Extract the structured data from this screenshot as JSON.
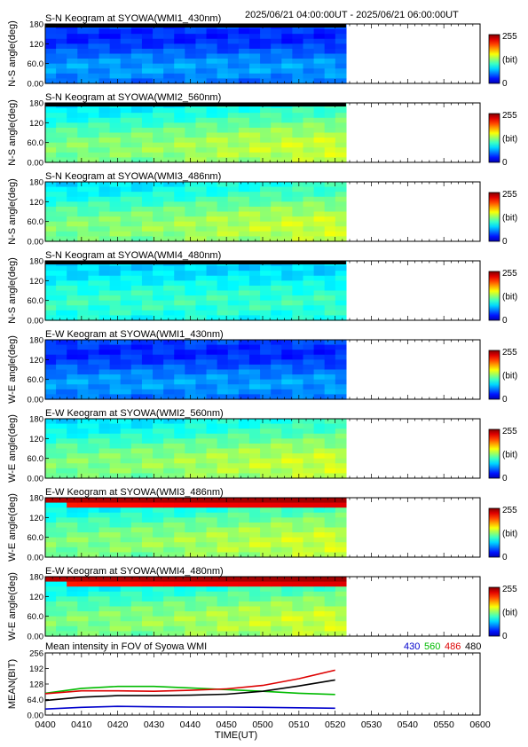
{
  "header": {
    "time_range": "2025/06/21 04:00:00UT - 2025/06/21 06:00:00UT"
  },
  "colorbar": {
    "max_label": "255",
    "unit_label": "(bit)",
    "min_label": "0"
  },
  "chart_data": [
    {
      "type": "heatmap",
      "title": "S-N Keogram at SYOWA(WMI1_430nm)",
      "ylabel": "N-S angle(deg)",
      "yticks": [
        "0.00",
        "60.0",
        "120",
        "180"
      ],
      "ylim": [
        0,
        180
      ],
      "data_end": "05:23UT",
      "colormap": "jet",
      "clim": [
        0,
        255
      ],
      "dominant": "blue",
      "top_edge": "black"
    },
    {
      "type": "heatmap",
      "title": "S-N Keogram at SYOWA(WMI2_560nm)",
      "ylabel": "N-S angle(deg)",
      "yticks": [
        "0.00",
        "60.0",
        "120",
        "180"
      ],
      "ylim": [
        0,
        180
      ],
      "data_end": "05:23UT",
      "colormap": "jet",
      "clim": [
        0,
        255
      ],
      "dominant": "green",
      "top_edge": "black"
    },
    {
      "type": "heatmap",
      "title": "S-N Keogram at SYOWA(WMI3_486nm)",
      "ylabel": "N-S angle(deg)",
      "yticks": [
        "0.00",
        "60.0",
        "120",
        "180"
      ],
      "ylim": [
        0,
        180
      ],
      "data_end": "05:23UT",
      "colormap": "jet",
      "clim": [
        0,
        255
      ],
      "dominant": "green",
      "top_edge": "none"
    },
    {
      "type": "heatmap",
      "title": "S-N Keogram at SYOWA(WMI4_480nm)",
      "ylabel": "N-S angle(deg)",
      "yticks": [
        "0.00",
        "60.0",
        "120",
        "180"
      ],
      "ylim": [
        0,
        180
      ],
      "data_end": "05:23UT",
      "colormap": "jet",
      "clim": [
        0,
        255
      ],
      "dominant": "teal",
      "top_edge": "black"
    },
    {
      "type": "heatmap",
      "title": "E-W Keogram at SYOWA(WMI1_430nm)",
      "ylabel": "W-E angle(deg)",
      "yticks": [
        "0.00",
        "60.0",
        "120",
        "180"
      ],
      "ylim": [
        0,
        180
      ],
      "data_end": "05:23UT",
      "colormap": "jet",
      "clim": [
        0,
        255
      ],
      "dominant": "blue",
      "top_edge": "none"
    },
    {
      "type": "heatmap",
      "title": "E-W Keogram at SYOWA(WMI2_560nm)",
      "ylabel": "W-E angle(deg)",
      "yticks": [
        "0.00",
        "60.0",
        "120",
        "180"
      ],
      "ylim": [
        0,
        180
      ],
      "data_end": "05:23UT",
      "colormap": "jet",
      "clim": [
        0,
        255
      ],
      "dominant": "green",
      "top_edge": "none"
    },
    {
      "type": "heatmap",
      "title": "E-W Keogram at SYOWA(WMI3_486nm)",
      "ylabel": "W-E angle(deg)",
      "yticks": [
        "0.00",
        "60.0",
        "120",
        "180"
      ],
      "ylim": [
        0,
        180
      ],
      "data_end": "05:23UT",
      "colormap": "jet",
      "clim": [
        0,
        255
      ],
      "dominant": "green",
      "top_edge": "red"
    },
    {
      "type": "heatmap",
      "title": "E-W Keogram at SYOWA(WMI4_480nm)",
      "ylabel": "W-E angle(deg)",
      "yticks": [
        "0.00",
        "60.0",
        "120",
        "180"
      ],
      "ylim": [
        0,
        180
      ],
      "data_end": "05:23UT",
      "colormap": "jet",
      "clim": [
        0,
        255
      ],
      "dominant": "green",
      "top_edge": "red"
    },
    {
      "type": "line",
      "title": "Mean intensity in FOV of Syowa WMI",
      "ylabel": "MEAN(BIT)",
      "xlabel": "TIME(UT)",
      "yticks": [
        "0.00",
        "64.0",
        "128",
        "192",
        "256"
      ],
      "ylim": [
        0,
        256
      ],
      "x_minutes_since_0400": [
        0,
        10,
        20,
        30,
        40,
        50,
        60,
        70,
        80
      ],
      "series": [
        {
          "name": "430",
          "color": "#0000cc",
          "values": [
            25,
            32,
            36,
            34,
            33,
            33,
            32,
            30,
            28
          ]
        },
        {
          "name": "560",
          "color": "#00bb00",
          "values": [
            90,
            110,
            118,
            118,
            112,
            105,
            98,
            90,
            85
          ]
        },
        {
          "name": "486",
          "color": "#dd0000",
          "values": [
            88,
            100,
            100,
            98,
            102,
            108,
            122,
            150,
            185
          ]
        },
        {
          "name": "480",
          "color": "#000000",
          "values": [
            60,
            74,
            80,
            80,
            82,
            86,
            98,
            120,
            145
          ]
        }
      ]
    }
  ],
  "x_axis": {
    "tick_labels": [
      "0400",
      "0410",
      "0420",
      "0430",
      "0440",
      "0450",
      "0500",
      "0510",
      "0520",
      "0530",
      "0540",
      "0550",
      "0600"
    ],
    "xlim_minutes": [
      0,
      120
    ]
  }
}
